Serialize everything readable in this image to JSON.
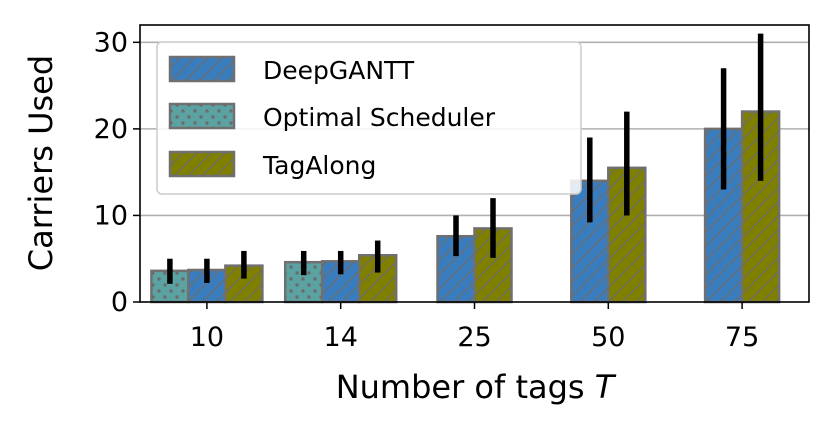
{
  "chart_data": {
    "type": "bar",
    "categories": [
      "10",
      "14",
      "25",
      "50",
      "75"
    ],
    "xlabel": "Number of tags",
    "xlabel_var": "T",
    "ylabel": "Carriers Used",
    "ylim": [
      0,
      32
    ],
    "yticks": [
      0,
      10,
      20,
      30
    ],
    "grid": "horizontal",
    "legend_position": "top-left",
    "series": [
      {
        "name": "DeepGANTT",
        "color": "#3a7dbf",
        "hatch": "diagonal",
        "values": [
          3.7,
          4.7,
          7.6,
          14.0,
          20.0
        ],
        "errors": [
          [
            2.2,
            5.0
          ],
          [
            3.2,
            5.9
          ],
          [
            5.3,
            10.0
          ],
          [
            9.2,
            19.0
          ],
          [
            13.0,
            27.0
          ]
        ]
      },
      {
        "name": "Optimal Scheduler",
        "color": "#5ba3a3",
        "hatch": "dots",
        "values": [
          3.6,
          4.6,
          null,
          null,
          null
        ],
        "errors": [
          [
            2.1,
            5.0
          ],
          [
            3.1,
            5.9
          ],
          null,
          null,
          null
        ]
      },
      {
        "name": "TagAlong",
        "color": "#808000",
        "hatch": "diagonal",
        "values": [
          4.2,
          5.4,
          8.5,
          15.5,
          22.0
        ],
        "errors": [
          [
            2.7,
            5.9
          ],
          [
            3.4,
            7.1
          ],
          [
            5.1,
            12.0
          ],
          [
            10.0,
            22.0
          ],
          [
            14.0,
            31.0
          ]
        ]
      }
    ]
  }
}
